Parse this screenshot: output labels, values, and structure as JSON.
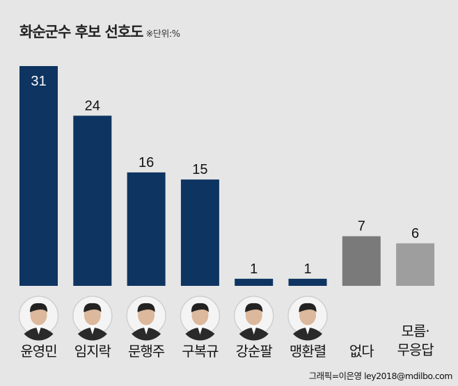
{
  "chart_data": {
    "type": "bar",
    "title": "화순군수 후보 선호도",
    "unit_note": "※단위:%",
    "categories": [
      "윤영민",
      "임지락",
      "문행주",
      "구복규",
      "강순팔",
      "맹환렬",
      "없다",
      "모름·\n무응답"
    ],
    "values": [
      31,
      24,
      16,
      15,
      1,
      1,
      7,
      6
    ],
    "colors": [
      "#0e3461",
      "#0e3461",
      "#0e3461",
      "#0e3461",
      "#0e3461",
      "#0e3461",
      "#7a7a7a",
      "#9e9e9e"
    ],
    "has_photo": [
      true,
      true,
      true,
      true,
      true,
      true,
      false,
      false
    ],
    "ylim": [
      0,
      31
    ]
  },
  "credit": "그래픽=이은영 ley2018@mdilbo.com"
}
